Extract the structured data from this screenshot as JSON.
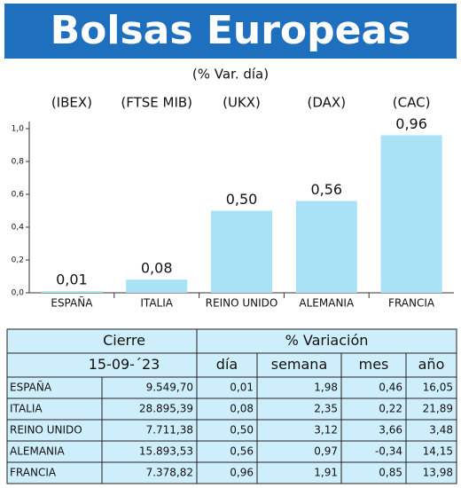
{
  "header": {
    "title": "Bolsas Europeas"
  },
  "chart_data": {
    "type": "bar",
    "subtitle": "(% Var. día)",
    "group_labels": [
      "(IBEX)",
      "(FTSE MIB)",
      "(UKX)",
      "(DAX)",
      "(CAC)"
    ],
    "categories": [
      "ESPAÑA",
      "ITALIA",
      "REINO UNIDO",
      "ALEMANIA",
      "FRANCIA"
    ],
    "values": [
      0.01,
      0.08,
      0.5,
      0.56,
      0.96
    ],
    "value_labels": [
      "0,01",
      "0,08",
      "0,50",
      "0,56",
      "0,96"
    ],
    "color": "#a9e1f6",
    "ylim": [
      0,
      1
    ],
    "yticks": [
      {
        "value": 0,
        "label": "0,0"
      },
      {
        "value": 0.2,
        "label": "0,2"
      },
      {
        "value": 0.4,
        "label": "0,4"
      },
      {
        "value": 0.6,
        "label": "0,6"
      },
      {
        "value": 0.8,
        "label": "0,8"
      },
      {
        "value": 1,
        "label": "1,0"
      }
    ]
  },
  "table": {
    "group_headers": [
      "Cierre",
      "% Variación"
    ],
    "columns": [
      "15-09-´23",
      "día",
      "semana",
      "mes",
      "año"
    ],
    "rows": [
      [
        "ESPAÑA",
        "9.549,70",
        "0,01",
        "1,98",
        "0,46",
        "16,05"
      ],
      [
        "ITALIA",
        "28.895,39",
        "0,08",
        "2,35",
        "0,22",
        "21,89"
      ],
      [
        "REINO UNIDO",
        "7.711,38",
        "0,50",
        "3,12",
        "3,66",
        "3,48"
      ],
      [
        "ALEMANIA",
        "15.893,53",
        "0,56",
        "0,97",
        "-0,34",
        "14,15"
      ],
      [
        "FRANCIA",
        "7.378,82",
        "0,96",
        "1,91",
        "0,85",
        "13,98"
      ]
    ]
  }
}
